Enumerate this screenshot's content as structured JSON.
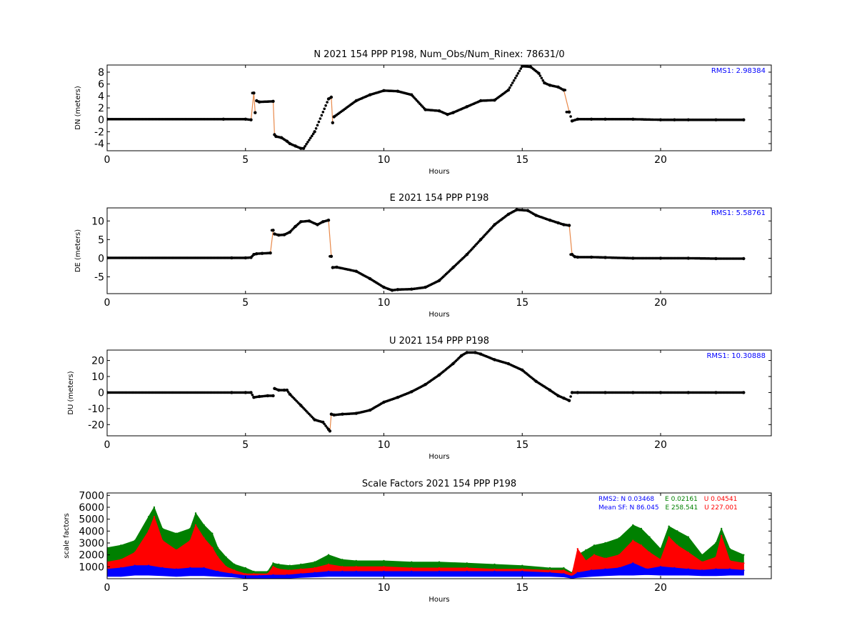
{
  "chart_data": [
    {
      "type": "scatter",
      "title": "N 2021 154 PPP  P198, Num_Obs/Num_Rinex: 78631/0",
      "xlabel": "Hours",
      "ylabel": "DN (meters)",
      "xlim": [
        0,
        24
      ],
      "ylim": [
        -5.2,
        9.2
      ],
      "xticks": [
        0,
        5,
        10,
        15,
        20
      ],
      "yticks": [
        -4,
        -2,
        0,
        2,
        4,
        6,
        8
      ],
      "grid": false,
      "annotations": [
        {
          "text": "RMS1:  2.98384",
          "color": "#0000ff",
          "position": "top-right"
        }
      ],
      "series": [
        {
          "color": "#000000",
          "x": [
            0,
            4.2,
            5.0,
            5.2,
            5.3,
            5.35,
            5.4,
            5.5,
            6.0,
            6.05,
            6.1,
            6.3,
            6.5,
            6.6,
            6.8,
            7.0,
            7.1,
            7.5,
            8.0,
            8.1,
            8.15,
            8.2,
            9.0,
            9.5,
            10.0,
            10.5,
            11.0,
            11.5,
            12.0,
            12.3,
            12.5,
            13.0,
            13.5,
            14.0,
            14.5,
            15.0,
            15.3,
            15.6,
            15.8,
            16.0,
            16.3,
            16.5,
            16.7,
            16.8,
            17.0,
            17.5,
            18.0,
            19.0,
            20.0,
            20.5,
            21.0,
            22.0,
            23.0
          ],
          "y": [
            0.1,
            0.1,
            0.1,
            0.0,
            4.5,
            1.2,
            3.2,
            3.0,
            3.1,
            -2.5,
            -2.8,
            -3.0,
            -3.6,
            -4.0,
            -4.4,
            -4.8,
            -4.8,
            -2.0,
            3.5,
            3.8,
            -0.5,
            0.5,
            3.2,
            4.2,
            4.9,
            4.8,
            4.2,
            1.7,
            1.5,
            0.9,
            1.2,
            2.2,
            3.2,
            3.3,
            5.0,
            9.0,
            8.9,
            7.8,
            6.2,
            5.8,
            5.5,
            5.0,
            1.3,
            -0.2,
            0.1,
            0.1,
            0.1,
            0.1,
            0.0,
            0.0,
            0.0,
            0.0,
            0.0
          ]
        }
      ]
    },
    {
      "type": "scatter",
      "title": "E 2021 154 PPP  P198",
      "xlabel": "Hours",
      "ylabel": "DE (meters)",
      "xlim": [
        0,
        24
      ],
      "ylim": [
        -9.5,
        13.5
      ],
      "xticks": [
        0,
        5,
        10,
        15,
        20
      ],
      "yticks": [
        -5,
        0,
        5,
        10
      ],
      "grid": false,
      "annotations": [
        {
          "text": "RMS1:  5.58761",
          "color": "#0000ff",
          "position": "top-right"
        }
      ],
      "series": [
        {
          "color": "#000000",
          "x": [
            0,
            4.5,
            5.0,
            5.2,
            5.3,
            5.4,
            5.6,
            5.9,
            6.0,
            6.05,
            6.2,
            6.4,
            6.6,
            6.8,
            7.0,
            7.3,
            7.6,
            7.8,
            8.0,
            8.1,
            8.15,
            8.3,
            9.0,
            9.5,
            10.0,
            10.3,
            10.5,
            11.0,
            11.5,
            12.0,
            12.5,
            13.0,
            13.5,
            14.0,
            14.5,
            14.8,
            15.2,
            15.5,
            16.0,
            16.3,
            16.5,
            16.7,
            16.8,
            16.9,
            17.0,
            17.5,
            18.0,
            19.0,
            20.0,
            21.0,
            22.0,
            23.0
          ],
          "y": [
            0.1,
            0.1,
            0.1,
            0.2,
            1.0,
            1.2,
            1.3,
            1.4,
            7.5,
            6.5,
            6.2,
            6.3,
            7.0,
            8.5,
            9.8,
            10.0,
            9.0,
            9.8,
            10.2,
            0.5,
            -2.5,
            -2.4,
            -3.5,
            -5.5,
            -7.8,
            -8.6,
            -8.4,
            -8.3,
            -7.8,
            -6.0,
            -2.5,
            1.0,
            5.0,
            9.0,
            11.8,
            13.0,
            12.8,
            11.5,
            10.2,
            9.5,
            9.0,
            8.8,
            1.0,
            0.4,
            0.3,
            0.3,
            0.2,
            0.0,
            0.0,
            0.0,
            -0.1,
            -0.1
          ]
        }
      ]
    },
    {
      "type": "scatter",
      "title": "U 2021 154 PPP  P198",
      "xlabel": "Hours",
      "ylabel": "DU (meters)",
      "xlim": [
        0,
        24
      ],
      "ylim": [
        -27,
        26.5
      ],
      "xticks": [
        0,
        5,
        10,
        15,
        20
      ],
      "yticks": [
        -20,
        -10,
        0,
        10,
        20
      ],
      "grid": false,
      "annotations": [
        {
          "text": "RMS1: 10.30888",
          "color": "#0000ff",
          "position": "top-right"
        }
      ],
      "series": [
        {
          "color": "#000000",
          "x": [
            0,
            4.5,
            5.0,
            5.2,
            5.3,
            5.5,
            5.8,
            6.0,
            6.05,
            6.2,
            6.4,
            6.5,
            6.6,
            7.0,
            7.5,
            7.8,
            8.0,
            8.05,
            8.1,
            8.2,
            8.5,
            9.0,
            9.5,
            10.0,
            10.5,
            11.0,
            11.5,
            12.0,
            12.5,
            12.8,
            13.0,
            13.3,
            13.5,
            14.0,
            14.5,
            15.0,
            15.5,
            16.0,
            16.3,
            16.5,
            16.7,
            16.8,
            17.0,
            18.0,
            19.0,
            20.0,
            21.0,
            22.0,
            23.0
          ],
          "y": [
            0,
            0,
            0,
            0,
            -3,
            -2.5,
            -2.0,
            -2.0,
            2.5,
            1.5,
            1.5,
            1.5,
            -1.0,
            -8.0,
            -17.0,
            -18.5,
            -23.0,
            -24.0,
            -13.5,
            -14.0,
            -13.5,
            -13.0,
            -11.0,
            -6.0,
            -3.0,
            0.5,
            5.0,
            11.0,
            18.0,
            23.0,
            25.0,
            25.0,
            24.0,
            20.5,
            18.0,
            14.0,
            7.0,
            1.5,
            -2.0,
            -3.5,
            -5.0,
            0.0,
            0.0,
            0.0,
            0.0,
            0.0,
            0.0,
            0.0,
            0.0
          ]
        }
      ]
    },
    {
      "type": "scatter",
      "title": "Scale Factors 2021 154 PPP  P198",
      "xlabel": "Hours",
      "ylabel": "scale factors",
      "xlim": [
        0,
        24
      ],
      "ylim": [
        0,
        7200
      ],
      "xticks": [
        0,
        5,
        10,
        15,
        20
      ],
      "yticks": [
        1000,
        2000,
        3000,
        4000,
        5000,
        6000,
        7000
      ],
      "grid": false,
      "stats_lines": [
        [
          {
            "text": "RMS2: N  0.03468",
            "color": "#0000ff"
          },
          {
            "text": "E  0.02161",
            "color": "#008000"
          },
          {
            "text": "U  0.04541",
            "color": "#ff0000"
          }
        ],
        [
          {
            "text": "Mean SF: N  86.045",
            "color": "#0000ff"
          },
          {
            "text": "E  258.541",
            "color": "#008000"
          },
          {
            "text": "U  227.001",
            "color": "#ff0000"
          }
        ]
      ],
      "series": [
        {
          "name": "E",
          "color": "#008000",
          "x": [
            0,
            0.5,
            1.0,
            1.5,
            1.7,
            2.0,
            2.5,
            3.0,
            3.2,
            3.5,
            3.8,
            4.0,
            4.3,
            4.6,
            5.0,
            5.3,
            5.8,
            6.0,
            6.2,
            6.6,
            7.0,
            7.5,
            8.0,
            8.5,
            9.0,
            10.0,
            11.0,
            12.0,
            13.0,
            14.0,
            15.0,
            16.0,
            16.5,
            16.8,
            17.0,
            17.3,
            17.6,
            18.0,
            18.5,
            19.0,
            19.3,
            19.6,
            20.0,
            20.3,
            20.6,
            21.0,
            21.5,
            22.0,
            22.2,
            22.5,
            23.0
          ],
          "lower": [
            400,
            500,
            600,
            700,
            700,
            600,
            600,
            600,
            600,
            600,
            500,
            400,
            300,
            200,
            100,
            100,
            100,
            100,
            200,
            200,
            300,
            400,
            500,
            500,
            500,
            500,
            500,
            500,
            500,
            500,
            500,
            500,
            300,
            100,
            300,
            500,
            500,
            500,
            600,
            600,
            600,
            600,
            600,
            600,
            500,
            500,
            400,
            500,
            600,
            500,
            500
          ],
          "upper": [
            2600,
            2800,
            3200,
            5200,
            6000,
            4200,
            3800,
            4200,
            5500,
            4500,
            3800,
            2600,
            1800,
            1200,
            900,
            600,
            600,
            1300,
            1200,
            1100,
            1200,
            1400,
            2000,
            1600,
            1500,
            1500,
            1400,
            1400,
            1300,
            1200,
            1100,
            900,
            900,
            500,
            2000,
            2400,
            2800,
            3000,
            3400,
            4500,
            4200,
            3500,
            2500,
            4400,
            4000,
            3500,
            2000,
            3000,
            4200,
            2500,
            2000
          ]
        },
        {
          "name": "U",
          "color": "#ff0000",
          "x": [
            0,
            0.5,
            1.0,
            1.5,
            1.7,
            2.0,
            2.5,
            3.0,
            3.2,
            3.5,
            3.8,
            4.0,
            4.3,
            4.6,
            5.0,
            5.3,
            5.8,
            6.0,
            6.2,
            6.6,
            7.0,
            7.5,
            8.0,
            8.5,
            9.0,
            10.0,
            11.0,
            12.0,
            13.0,
            14.0,
            15.0,
            16.0,
            16.5,
            16.8,
            17.0,
            17.3,
            17.6,
            18.0,
            18.5,
            19.0,
            19.3,
            19.6,
            20.0,
            20.3,
            20.6,
            21.0,
            21.5,
            22.0,
            22.2,
            22.5,
            23.0
          ],
          "lower": [
            300,
            400,
            500,
            500,
            500,
            500,
            500,
            500,
            500,
            500,
            400,
            300,
            250,
            200,
            100,
            100,
            100,
            100,
            150,
            150,
            200,
            300,
            400,
            400,
            400,
            400,
            400,
            400,
            400,
            400,
            400,
            400,
            250,
            100,
            250,
            400,
            400,
            400,
            500,
            500,
            500,
            500,
            500,
            500,
            400,
            400,
            350,
            400,
            500,
            400,
            400
          ],
          "upper": [
            1400,
            1600,
            2200,
            4000,
            5200,
            3200,
            2400,
            3200,
            4500,
            3400,
            2600,
            1800,
            1000,
            700,
            400,
            400,
            400,
            1000,
            800,
            700,
            800,
            900,
            1200,
            1000,
            1000,
            1000,
            900,
            900,
            900,
            800,
            800,
            700,
            700,
            400,
            2500,
            1500,
            2000,
            1700,
            2000,
            3200,
            2800,
            2200,
            1600,
            3500,
            2800,
            2200,
            1400,
            1800,
            3600,
            1500,
            1300
          ]
        },
        {
          "name": "N",
          "color": "#0000ff",
          "x": [
            0,
            0.5,
            1.0,
            1.5,
            2.0,
            2.5,
            3.0,
            3.5,
            4.0,
            4.5,
            5.0,
            5.5,
            6.0,
            6.5,
            7.0,
            7.5,
            8.0,
            8.5,
            9.0,
            10.0,
            11.0,
            12.0,
            13.0,
            14.0,
            15.0,
            16.0,
            16.5,
            16.8,
            17.0,
            17.5,
            18.0,
            18.5,
            19.0,
            19.5,
            20.0,
            20.5,
            21.0,
            21.5,
            22.0,
            22.5,
            23.0
          ],
          "lower": [
            200,
            200,
            300,
            300,
            250,
            200,
            250,
            250,
            200,
            150,
            50,
            50,
            50,
            50,
            100,
            150,
            200,
            200,
            200,
            200,
            200,
            200,
            200,
            200,
            200,
            200,
            150,
            50,
            100,
            200,
            250,
            300,
            300,
            350,
            300,
            300,
            300,
            250,
            250,
            300,
            300
          ],
          "upper": [
            800,
            900,
            1100,
            1100,
            900,
            800,
            900,
            900,
            600,
            400,
            250,
            250,
            300,
            300,
            400,
            500,
            600,
            600,
            600,
            600,
            600,
            600,
            600,
            600,
            600,
            500,
            400,
            200,
            500,
            700,
            800,
            900,
            1300,
            800,
            1000,
            900,
            800,
            700,
            800,
            800,
            700
          ]
        }
      ]
    }
  ]
}
